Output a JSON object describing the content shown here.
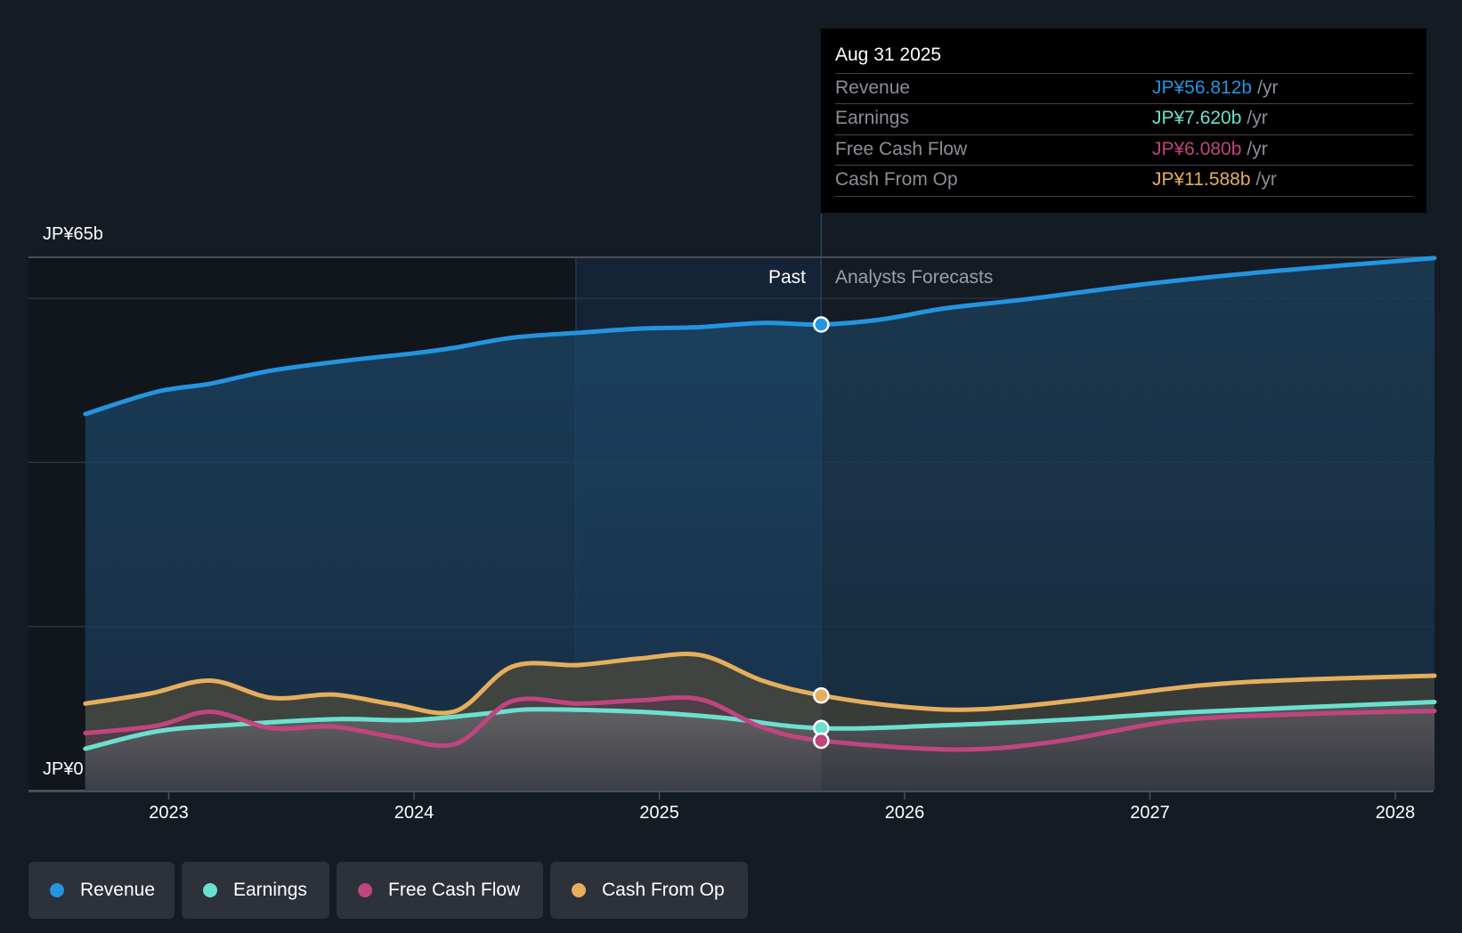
{
  "tooltip": {
    "date": "Aug 31 2025",
    "rows": [
      {
        "name": "Revenue",
        "value": "JP¥56.812b",
        "unit": "/yr",
        "color": "#2394e0"
      },
      {
        "name": "Earnings",
        "value": "JP¥7.620b",
        "unit": "/yr",
        "color": "#6be0cf"
      },
      {
        "name": "Free Cash Flow",
        "value": "JP¥6.080b",
        "unit": "/yr",
        "color": "#c0457e"
      },
      {
        "name": "Cash From Op",
        "value": "JP¥11.588b",
        "unit": "/yr",
        "color": "#e6ae5c"
      }
    ]
  },
  "segments": {
    "past": "Past",
    "forecast": "Analysts Forecasts"
  },
  "legend": [
    {
      "label": "Revenue",
      "color": "#2394e0"
    },
    {
      "label": "Earnings",
      "color": "#6be0cf"
    },
    {
      "label": "Free Cash Flow",
      "color": "#c0457e"
    },
    {
      "label": "Cash From Op",
      "color": "#e6ae5c"
    }
  ],
  "chart_data": {
    "type": "area",
    "title": "",
    "xlabel": "",
    "ylabel": "",
    "ylim": [
      0,
      65
    ],
    "xlim": [
      2022.66,
      2028.16
    ],
    "y_tick_labels": [
      {
        "value": 65,
        "label": "JP¥65b"
      },
      {
        "value": 0,
        "label": "JP¥0"
      }
    ],
    "y_gridlines": [
      0,
      20,
      40,
      60,
      65
    ],
    "x_ticks": [
      2023,
      2024,
      2025,
      2026,
      2027,
      2028
    ],
    "x_tick_labels": [
      "2023",
      "2024",
      "2025",
      "2026",
      "2027",
      "2028"
    ],
    "past_forecast_divider": 2025.66,
    "highlight_start": 2024.66,
    "unit": "JP¥ billions",
    "series": [
      {
        "name": "Revenue",
        "color": "#2394e0",
        "x": [
          2022.66,
          2022.95,
          2023.17,
          2023.42,
          2023.75,
          2024.0,
          2024.17,
          2024.4,
          2024.67,
          2024.92,
          2025.17,
          2025.42,
          2025.66,
          2025.9,
          2026.17,
          2026.5,
          2027.0,
          2027.5,
          2028.16
        ],
        "values": [
          45.9,
          48.6,
          49.6,
          51.2,
          52.5,
          53.3,
          54.0,
          55.2,
          55.8,
          56.3,
          56.5,
          57.0,
          56.8,
          57.4,
          58.8,
          59.9,
          61.8,
          63.3,
          64.9
        ]
      },
      {
        "name": "Cash From Op",
        "color": "#e6ae5c",
        "x": [
          2022.66,
          2022.92,
          2023.17,
          2023.42,
          2023.67,
          2023.92,
          2024.17,
          2024.4,
          2024.67,
          2024.92,
          2025.17,
          2025.42,
          2025.66,
          2026.0,
          2026.3,
          2026.7,
          2027.2,
          2027.6,
          2028.16
        ],
        "values": [
          10.6,
          11.8,
          13.4,
          11.3,
          11.7,
          10.5,
          9.7,
          15.1,
          15.3,
          16.1,
          16.5,
          13.4,
          11.6,
          10.2,
          9.9,
          11.0,
          12.8,
          13.5,
          14.0
        ]
      },
      {
        "name": "Earnings",
        "color": "#6be0cf",
        "x": [
          2022.66,
          2022.95,
          2023.25,
          2023.67,
          2024.0,
          2024.33,
          2024.5,
          2024.92,
          2025.25,
          2025.66,
          2026.2,
          2026.7,
          2027.2,
          2028.16
        ],
        "values": [
          5.1,
          7.2,
          8.0,
          8.7,
          8.6,
          9.5,
          9.9,
          9.6,
          8.9,
          7.6,
          8.0,
          8.7,
          9.6,
          10.8
        ]
      },
      {
        "name": "Free Cash Flow",
        "color": "#c0457e",
        "x": [
          2022.66,
          2022.95,
          2023.17,
          2023.42,
          2023.67,
          2023.92,
          2024.17,
          2024.4,
          2024.67,
          2024.92,
          2025.17,
          2025.42,
          2025.66,
          2026.2,
          2026.6,
          2027.1,
          2027.6,
          2028.16
        ],
        "values": [
          7.0,
          7.9,
          9.6,
          7.6,
          7.8,
          6.5,
          5.7,
          10.9,
          10.6,
          11.0,
          11.1,
          7.7,
          6.1,
          5.0,
          5.9,
          8.5,
          9.3,
          9.7
        ]
      }
    ],
    "markers_at_divider": [
      {
        "series": "Revenue",
        "value": 56.812
      },
      {
        "series": "Earnings",
        "value": 7.62
      },
      {
        "series": "Free Cash Flow",
        "value": 6.08
      },
      {
        "series": "Cash From Op",
        "value": 11.588
      }
    ]
  }
}
